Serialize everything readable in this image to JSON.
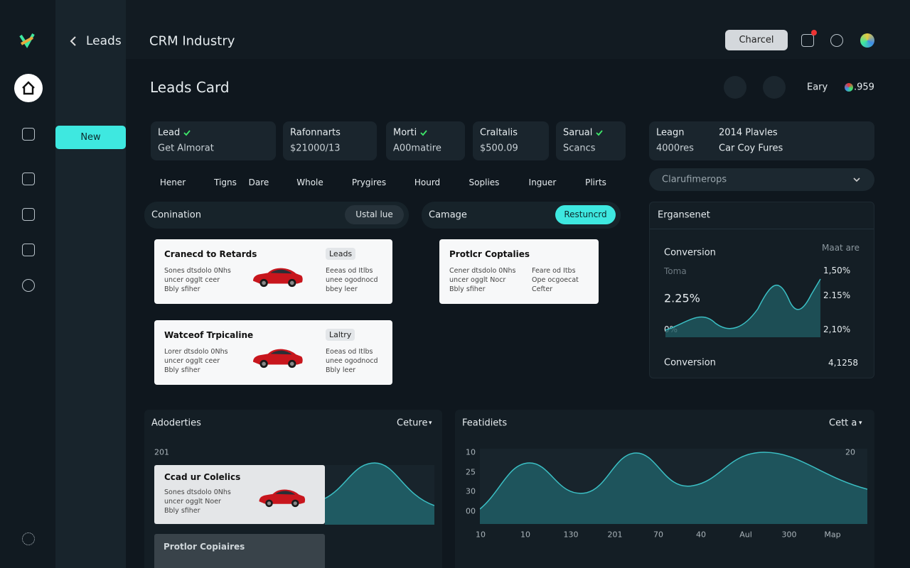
{
  "nav": {
    "back": "Leads",
    "title": "CRM Industry",
    "button": "Charcel"
  },
  "side": {
    "new": "New"
  },
  "header": {
    "title": "Leads Card",
    "label": "Eary",
    "count": ".959"
  },
  "stats": [
    {
      "label": "Lead",
      "sub": "Get Almorat"
    },
    {
      "label": "Rafonnarts",
      "sub": "$21000/13"
    },
    {
      "label": "Morti",
      "sub": "A00matire"
    },
    {
      "label": "Craltalis",
      "sub": "$500.09"
    },
    {
      "label": "Sarual",
      "sub": "Scancs"
    }
  ],
  "summary": {
    "label": "Leagn",
    "sub": "4000res",
    "item1": "2014 Plavles",
    "item2": "Car Coy Fures"
  },
  "dropdown": "Clarufimerops",
  "tabs": [
    "Hener",
    "Tigns",
    "Dare",
    "Whole",
    "Prygires",
    "Hourd",
    "Soplies",
    "Inguer",
    "Plirts"
  ],
  "columns": [
    {
      "title": "Conination",
      "chip": "Ustal lue",
      "cards": [
        {
          "title": "Cranecd to Retards",
          "tag": "Leads",
          "lines": [
            "Sones dtsdolo 0Nhs",
            "uncer ogglt ceer",
            "Bbly sfiher"
          ],
          "right": [
            "Eeeas od Itlbs",
            "unee ogodnocd",
            "bbey leer"
          ]
        },
        {
          "title": "Watceof Trpicaline",
          "tag": "Laltry",
          "lines": [
            "Lorer dtsdolo 0Nhs",
            "uncer ogglt ceer",
            "Bbly sfiher"
          ],
          "right": [
            "Eoeas od Itlbs",
            "unee ogodnocd",
            "Bbly leer"
          ]
        }
      ]
    },
    {
      "title": "Camage",
      "chip": "Restuncrd",
      "cards": [
        {
          "title": "Protlcr Coptalies",
          "lines": [
            "Cener dtsdolo 0Nhs",
            "uncer ogglt Nocr",
            "Bbly sfiher"
          ],
          "right": [
            "Feare od Itbs",
            "Ope ocgoecat",
            "Cefter"
          ]
        }
      ]
    }
  ],
  "insight": {
    "title": "Ergansenet",
    "label": "Conversion",
    "corner": "Maat are",
    "sub": "Toma",
    "big": "2.25%",
    "low": "0%",
    "ticks": [
      "1,50%",
      "2.15%",
      "2,10%"
    ],
    "footer": "Conversion",
    "footer_value": "4,1258"
  },
  "activities": {
    "title": "Adoderties",
    "menu": "Ceture",
    "axis": "201",
    "card": {
      "title": "Ccad ur Colelics",
      "lines": [
        "Sones dtsdolo 0Nhs",
        "uncer ogglt Noer",
        "Bbly sfiher"
      ]
    },
    "card2": "Protlor Copiaires"
  },
  "features": {
    "title": "Featidiets",
    "menu": "Cett a",
    "yticks": [
      "10",
      "25",
      "30",
      "00"
    ],
    "y2tick": "20",
    "xticks": [
      "10",
      "10",
      "130",
      "201",
      "70",
      "40",
      "Aul",
      "300",
      "Map"
    ]
  }
}
